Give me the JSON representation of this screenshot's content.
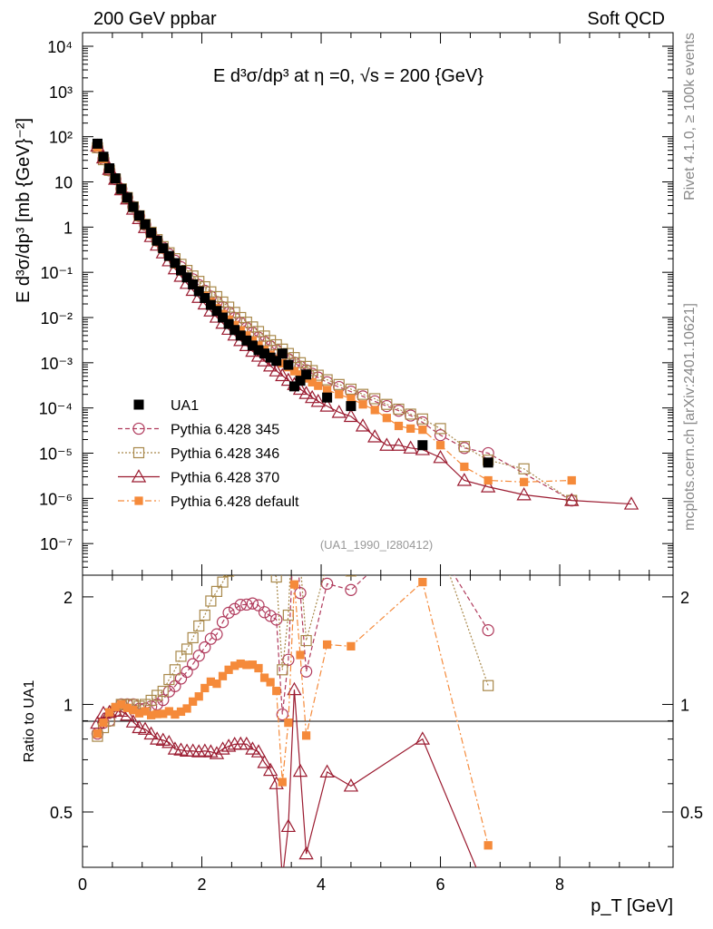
{
  "header": {
    "left": "200 GeV ppbar",
    "right": "Soft QCD"
  },
  "side_labels": {
    "rivet": "Rivet 4.1.0, ≥ 100k events",
    "mcplots": "mcplots.cern.ch [arXiv:2401.10621]"
  },
  "chart_data": {
    "type": "scatter",
    "title": "E d³σ/dp³ at η =0, √s = 200 {GeV}",
    "xlabel": "p_T [GeV]",
    "ylabel": "E d³σ/dp³ [mb {GeV}⁻²]",
    "ratio_ylabel": "Ratio to UA1",
    "analysis_label": "(UA1_1990_I280412)",
    "xlim": [
      0,
      9.9
    ],
    "ylim": [
      2e-08,
      20000
    ],
    "ratio_ylim": [
      0.35,
      2.3
    ],
    "x_ticks": [
      "0",
      "2",
      "4",
      "6",
      "8"
    ],
    "y_ticks": [
      "10⁻⁷",
      "10⁻⁶",
      "10⁻⁵",
      "10⁻⁴",
      "10⁻³",
      "10⁻²",
      "10⁻¹",
      "1",
      "10",
      "10²",
      "10³",
      "10⁴"
    ],
    "ratio_ticks_left": [
      "0.5",
      "1",
      "2"
    ],
    "ratio_ticks_right": [
      "0.5",
      "1",
      "2"
    ],
    "colors": {
      "data": "#000000",
      "p345": "#b03a5c",
      "p346": "#a8884a",
      "p370": "#9b1b30",
      "def": "#f58a3a"
    },
    "series": [
      {
        "name": "UA1",
        "key": "data",
        "x": [
          0.25,
          0.35,
          0.45,
          0.55,
          0.65,
          0.75,
          0.85,
          0.95,
          1.05,
          1.15,
          1.25,
          1.35,
          1.45,
          1.55,
          1.65,
          1.75,
          1.85,
          1.95,
          2.05,
          2.15,
          2.25,
          2.35,
          2.45,
          2.55,
          2.65,
          2.75,
          2.85,
          2.95,
          3.05,
          3.15,
          3.25,
          3.35,
          3.45,
          3.55,
          3.65,
          3.75,
          4.1,
          4.5,
          5.7,
          6.8
        ],
        "y": [
          70,
          36,
          20,
          12,
          7,
          4.5,
          2.8,
          1.8,
          1.15,
          0.75,
          0.5,
          0.34,
          0.23,
          0.16,
          0.11,
          0.077,
          0.054,
          0.038,
          0.027,
          0.019,
          0.014,
          0.01,
          0.0072,
          0.0053,
          0.004,
          0.0031,
          0.0024,
          0.0019,
          0.0016,
          0.0013,
          0.0011,
          0.0016,
          0.0009,
          0.0003,
          0.0004,
          0.00055,
          0.00017,
          0.00011,
          1.5e-05,
          6.2e-06
        ]
      },
      {
        "name": "Pythia 6.428 345",
        "key": "p345",
        "x": [
          0.25,
          0.35,
          0.45,
          0.55,
          0.65,
          0.75,
          0.85,
          0.95,
          1.05,
          1.15,
          1.25,
          1.35,
          1.45,
          1.55,
          1.65,
          1.75,
          1.85,
          1.95,
          2.05,
          2.15,
          2.25,
          2.35,
          2.45,
          2.55,
          2.65,
          2.75,
          2.85,
          2.95,
          3.05,
          3.15,
          3.25,
          3.35,
          3.45,
          3.55,
          3.65,
          3.75,
          3.85,
          3.95,
          4.1,
          4.3,
          4.5,
          4.7,
          4.9,
          5.1,
          5.3,
          5.5,
          5.7,
          6.0,
          6.4,
          6.8,
          8.2
        ],
        "y": [
          58,
          32,
          18,
          11.5,
          7,
          4.5,
          2.8,
          1.75,
          1.12,
          0.74,
          0.5,
          0.35,
          0.25,
          0.18,
          0.13,
          0.095,
          0.07,
          0.052,
          0.039,
          0.029,
          0.022,
          0.017,
          0.013,
          0.0098,
          0.0076,
          0.0059,
          0.0046,
          0.0036,
          0.0029,
          0.0023,
          0.0019,
          0.0015,
          0.0012,
          0.001,
          0.00082,
          0.00068,
          0.00057,
          0.00047,
          0.00037,
          0.00029,
          0.00023,
          0.00018,
          0.00014,
          0.00011,
          8.7e-05,
          6.8e-05,
          4.8e-05,
          2.5e-05,
          1.3e-05,
          1e-05,
          9e-07
        ]
      },
      {
        "name": "Pythia 6.428 346",
        "key": "p346",
        "x": [
          0.25,
          0.35,
          0.45,
          0.55,
          0.65,
          0.75,
          0.85,
          0.95,
          1.05,
          1.15,
          1.25,
          1.35,
          1.45,
          1.55,
          1.65,
          1.75,
          1.85,
          1.95,
          2.05,
          2.15,
          2.25,
          2.35,
          2.45,
          2.55,
          2.65,
          2.75,
          2.85,
          2.95,
          3.05,
          3.15,
          3.25,
          3.35,
          3.45,
          3.55,
          3.65,
          3.75,
          3.85,
          3.95,
          4.1,
          4.3,
          4.5,
          4.7,
          4.9,
          5.1,
          5.3,
          5.5,
          5.7,
          6.0,
          6.4,
          6.8,
          7.4,
          8.2
        ],
        "y": [
          57,
          31,
          18,
          11.5,
          7,
          4.5,
          2.8,
          1.78,
          1.15,
          0.77,
          0.53,
          0.37,
          0.27,
          0.2,
          0.15,
          0.11,
          0.083,
          0.063,
          0.048,
          0.037,
          0.029,
          0.022,
          0.017,
          0.013,
          0.01,
          0.0079,
          0.0062,
          0.0049,
          0.0039,
          0.0031,
          0.0025,
          0.002,
          0.0016,
          0.0013,
          0.001,
          0.00083,
          0.00067,
          0.00053,
          0.00042,
          0.00033,
          0.00026,
          0.0002,
          0.00016,
          0.00012,
          9.4e-05,
          7.3e-05,
          5.7e-05,
          3.5e-05,
          1.4e-05,
          7e-06,
          4.5e-06,
          9e-07
        ]
      },
      {
        "name": "Pythia 6.428 370",
        "key": "p370",
        "x": [
          0.25,
          0.35,
          0.45,
          0.55,
          0.65,
          0.75,
          0.85,
          0.95,
          1.05,
          1.15,
          1.25,
          1.35,
          1.45,
          1.55,
          1.65,
          1.75,
          1.85,
          1.95,
          2.05,
          2.15,
          2.25,
          2.35,
          2.45,
          2.55,
          2.65,
          2.75,
          2.85,
          2.95,
          3.05,
          3.15,
          3.25,
          3.35,
          3.45,
          3.55,
          3.65,
          3.75,
          3.85,
          3.95,
          4.1,
          4.3,
          4.5,
          4.7,
          4.9,
          5.1,
          5.3,
          5.5,
          5.7,
          6.0,
          6.4,
          6.8,
          7.4,
          8.2,
          9.2
        ],
        "y": [
          62,
          34,
          19,
          11.5,
          6.7,
          4.2,
          2.5,
          1.55,
          0.98,
          0.62,
          0.4,
          0.27,
          0.18,
          0.12,
          0.082,
          0.057,
          0.04,
          0.028,
          0.02,
          0.014,
          0.0102,
          0.0075,
          0.0055,
          0.0041,
          0.0031,
          0.0024,
          0.0018,
          0.0014,
          0.0011,
          0.00085,
          0.00066,
          0.00052,
          0.00041,
          0.00033,
          0.00026,
          0.00021,
          0.00017,
          0.00014,
          0.00011,
          8e-05,
          6.5e-05,
          4e-05,
          2.3e-05,
          1.5e-05,
          1.5e-05,
          1.3e-05,
          1.2e-05,
          8e-06,
          2.5e-06,
          1.8e-06,
          1.2e-06,
          9e-07,
          7.5e-07
        ]
      },
      {
        "name": "Pythia 6.428 default",
        "key": "def",
        "x": [
          0.25,
          0.35,
          0.45,
          0.55,
          0.65,
          0.75,
          0.85,
          0.95,
          1.05,
          1.15,
          1.25,
          1.35,
          1.45,
          1.55,
          1.65,
          1.75,
          1.85,
          1.95,
          2.05,
          2.15,
          2.25,
          2.35,
          2.45,
          2.55,
          2.65,
          2.75,
          2.85,
          2.95,
          3.05,
          3.15,
          3.25,
          3.35,
          3.45,
          3.55,
          3.65,
          3.75,
          3.85,
          3.95,
          4.1,
          4.3,
          4.5,
          4.7,
          4.9,
          5.1,
          5.3,
          5.5,
          5.7,
          6.0,
          6.4,
          6.8,
          7.4,
          8.2
        ],
        "y": [
          58,
          32,
          19,
          11.8,
          7,
          4.4,
          2.7,
          1.7,
          1.1,
          0.7,
          0.47,
          0.32,
          0.22,
          0.15,
          0.105,
          0.075,
          0.055,
          0.04,
          0.03,
          0.022,
          0.016,
          0.012,
          0.009,
          0.0068,
          0.0052,
          0.004,
          0.0031,
          0.0024,
          0.0019,
          0.0015,
          0.0012,
          0.00097,
          0.0008,
          0.00065,
          0.00055,
          0.00045,
          0.00037,
          0.00031,
          0.00025,
          0.0002,
          0.00016,
          0.00012,
          9e-05,
          6e-05,
          4e-05,
          3.5e-05,
          3.3e-05,
          1.5e-05,
          5e-06,
          2.5e-06,
          2.3e-06,
          2.5e-06
        ]
      }
    ],
    "legend": [
      "UA1",
      "Pythia 6.428 345",
      "Pythia 6.428 346",
      "Pythia 6.428 370",
      "Pythia 6.428 default"
    ],
    "legend_position": "lower-left"
  }
}
